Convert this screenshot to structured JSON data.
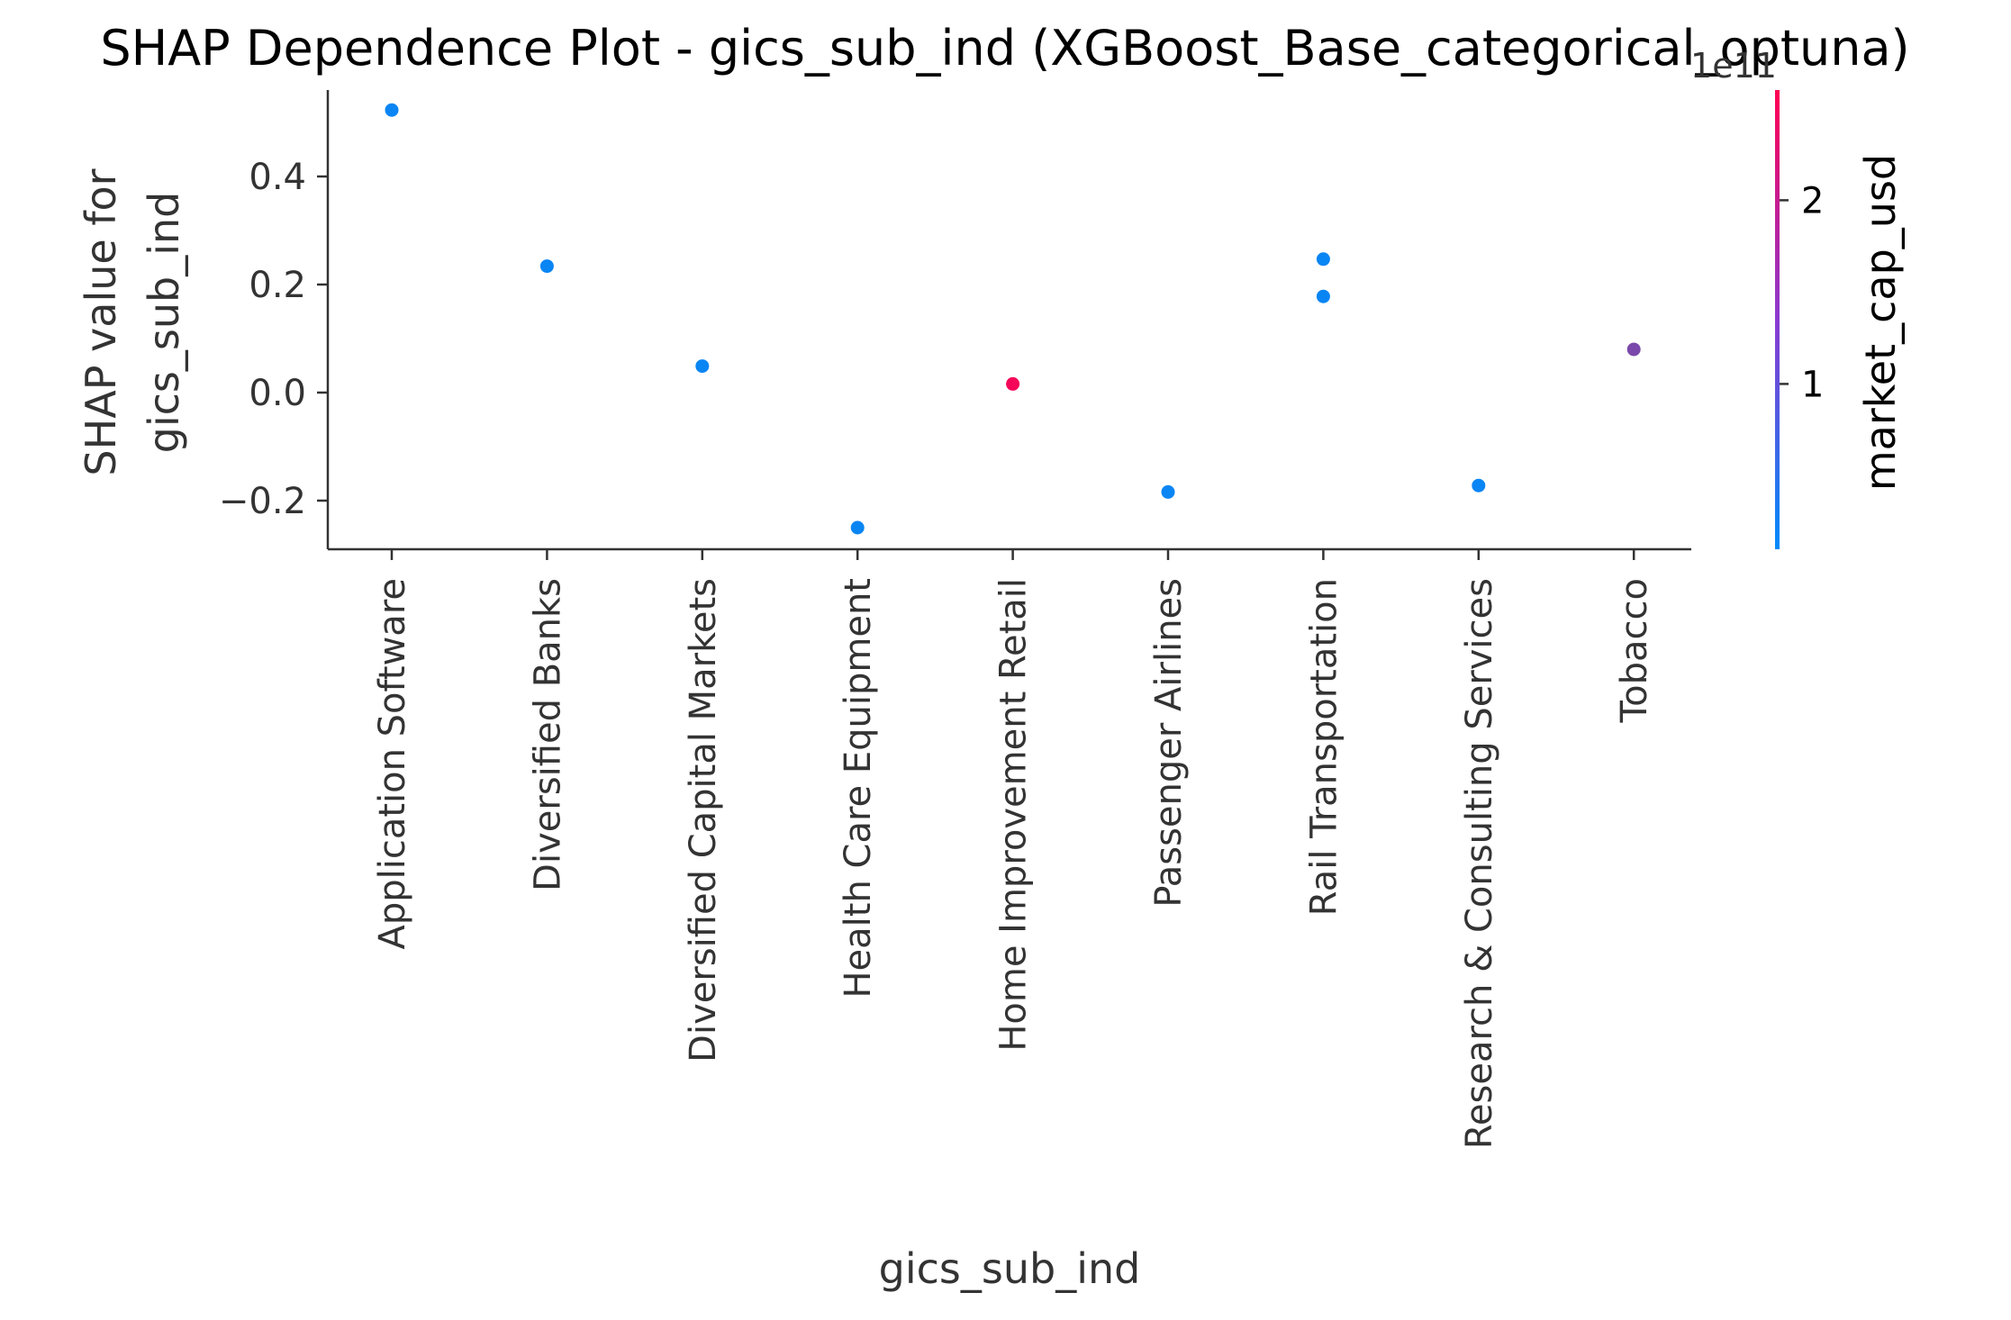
{
  "chart_data": {
    "type": "scatter",
    "title": "SHAP Dependence Plot - gics_sub_ind (XGBoost_Base_categorical_optuna)",
    "xlabel": "gics_sub_ind",
    "ylabel": [
      "SHAP value for",
      "gics_sub_ind"
    ],
    "ylim": [
      -0.29,
      0.56
    ],
    "yticks": [
      {
        "value": -0.2,
        "label": "−0.2"
      },
      {
        "value": 0.0,
        "label": "0.0"
      },
      {
        "value": 0.2,
        "label": "0.2"
      },
      {
        "value": 0.4,
        "label": "0.4"
      }
    ],
    "categories": [
      "Application Software",
      "Diversified Banks",
      "Diversified Capital Markets",
      "Health Care Equipment",
      "Home Improvement Retail",
      "Passenger Airlines",
      "Rail Transportation",
      "Research & Consulting Services",
      "Tobacco"
    ],
    "points": [
      {
        "category": "Application Software",
        "y": 0.523,
        "market_cap": 0.2
      },
      {
        "category": "Diversified Banks",
        "y": 0.234,
        "market_cap": 0.2
      },
      {
        "category": "Diversified Capital Markets",
        "y": 0.049,
        "market_cap": 0.2
      },
      {
        "category": "Health Care Equipment",
        "y": -0.25,
        "market_cap": 0.2
      },
      {
        "category": "Home Improvement Retail",
        "y": 0.016,
        "market_cap": 2.5
      },
      {
        "category": "Passenger Airlines",
        "y": -0.184,
        "market_cap": 0.2
      },
      {
        "category": "Rail Transportation",
        "y": 0.247,
        "market_cap": 0.2
      },
      {
        "category": "Rail Transportation",
        "y": 0.178,
        "market_cap": 0.2
      },
      {
        "category": "Research & Consulting Services",
        "y": -0.172,
        "market_cap": 0.2
      },
      {
        "category": "Tobacco",
        "y": 0.08,
        "market_cap": 1.3
      }
    ],
    "colorbar": {
      "label": "market_cap_usd",
      "offset_label": "1e11",
      "range": [
        0.1,
        2.6
      ],
      "ticks": [
        {
          "value": 1,
          "label": "1"
        },
        {
          "value": 2,
          "label": "2"
        }
      ],
      "colors": [
        "#008bfb",
        "#ff0052"
      ]
    },
    "grid": false,
    "legend": "none"
  }
}
